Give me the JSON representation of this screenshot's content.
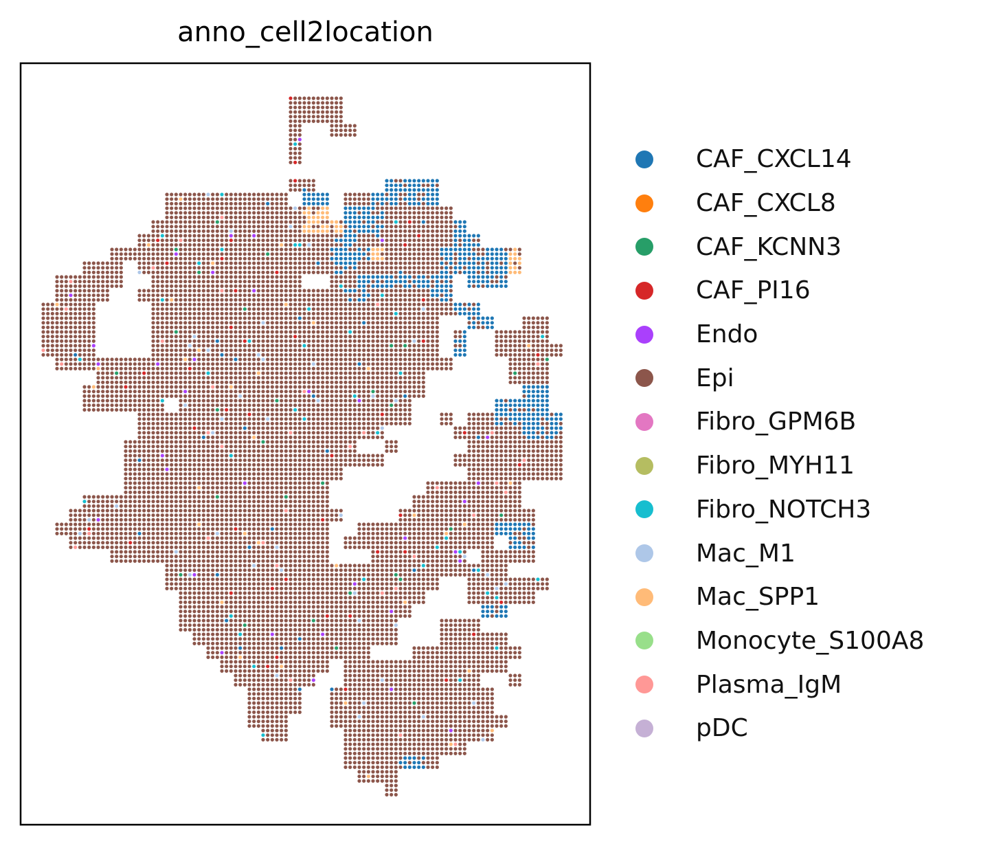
{
  "chart_data": {
    "type": "scatter",
    "title": "anno_cell2location",
    "xlabel": "",
    "ylabel": "",
    "ticks": "none",
    "grid": false,
    "legend_placement": "right",
    "categories": [
      {
        "name": "CAF_CXCL14",
        "color": "#1f77b4"
      },
      {
        "name": "CAF_CXCL8",
        "color": "#ff7f0e"
      },
      {
        "name": "CAF_KCNN3",
        "color": "#279e68"
      },
      {
        "name": "CAF_PI16",
        "color": "#d62728"
      },
      {
        "name": "Endo",
        "color": "#aa40fc"
      },
      {
        "name": "Epi",
        "color": "#8c564b"
      },
      {
        "name": "Fibro_GPM6B",
        "color": "#e377c2"
      },
      {
        "name": "Fibro_MYH11",
        "color": "#b5bd61"
      },
      {
        "name": "Fibro_NOTCH3",
        "color": "#17becf"
      },
      {
        "name": "Mac_M1",
        "color": "#aec7e8"
      },
      {
        "name": "Mac_SPP1",
        "color": "#ffbb78"
      },
      {
        "name": "Monocyte_S100A8",
        "color": "#98df8a"
      },
      {
        "name": "Plasma_IgM",
        "color": "#ff9896"
      },
      {
        "name": "pDC",
        "color": "#c5b0d5"
      }
    ]
  }
}
